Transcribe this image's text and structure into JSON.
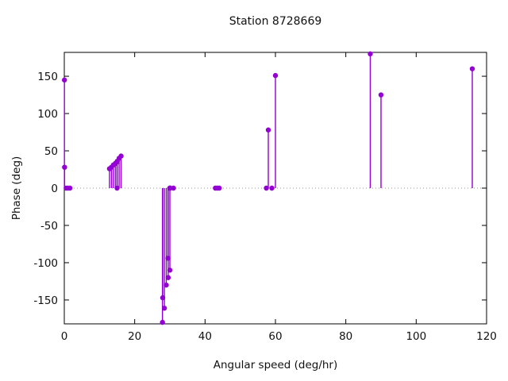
{
  "window": {
    "title": "Station 8728669"
  },
  "chart_data": {
    "type": "scatter",
    "style": "stem (impulses + points)",
    "title": "Station 8728669",
    "xlabel": "Angular speed (deg/hr)",
    "ylabel": "Phase (deg)",
    "xlim": [
      0,
      120
    ],
    "ylim": [
      -182,
      182
    ],
    "xticks": [
      0,
      20,
      40,
      60,
      80,
      100,
      120
    ],
    "yticks": [
      -150,
      -100,
      -50,
      0,
      50,
      100,
      150
    ],
    "grid": "off",
    "legend": "none",
    "zero_line": "dotted-gray",
    "marker_color": "#9400d3",
    "zero_line_color": "#999999",
    "axis_color": "#000000",
    "points": [
      [
        0.04,
        145
      ],
      [
        0.08,
        28
      ],
      [
        0.54,
        0
      ],
      [
        1.02,
        0
      ],
      [
        1.6,
        0
      ],
      [
        12.85,
        26
      ],
      [
        13.4,
        28
      ],
      [
        13.94,
        31
      ],
      [
        14.49,
        33
      ],
      [
        14.96,
        35
      ],
      [
        15.04,
        36
      ],
      [
        15.58,
        40
      ],
      [
        16.14,
        43
      ],
      [
        15.0,
        0
      ],
      [
        27.9,
        -180
      ],
      [
        27.97,
        -147
      ],
      [
        28.44,
        -161
      ],
      [
        28.98,
        -130
      ],
      [
        29.46,
        -94
      ],
      [
        29.53,
        -120
      ],
      [
        30.0,
        -110
      ],
      [
        29.96,
        0
      ],
      [
        30.04,
        0
      ],
      [
        30.08,
        0
      ],
      [
        31.02,
        0
      ],
      [
        42.93,
        0
      ],
      [
        43.48,
        0
      ],
      [
        44.03,
        0
      ],
      [
        57.42,
        0
      ],
      [
        57.97,
        78
      ],
      [
        58.98,
        0
      ],
      [
        60.0,
        151
      ],
      [
        86.95,
        180
      ],
      [
        90.0,
        125
      ],
      [
        115.94,
        160
      ]
    ]
  }
}
